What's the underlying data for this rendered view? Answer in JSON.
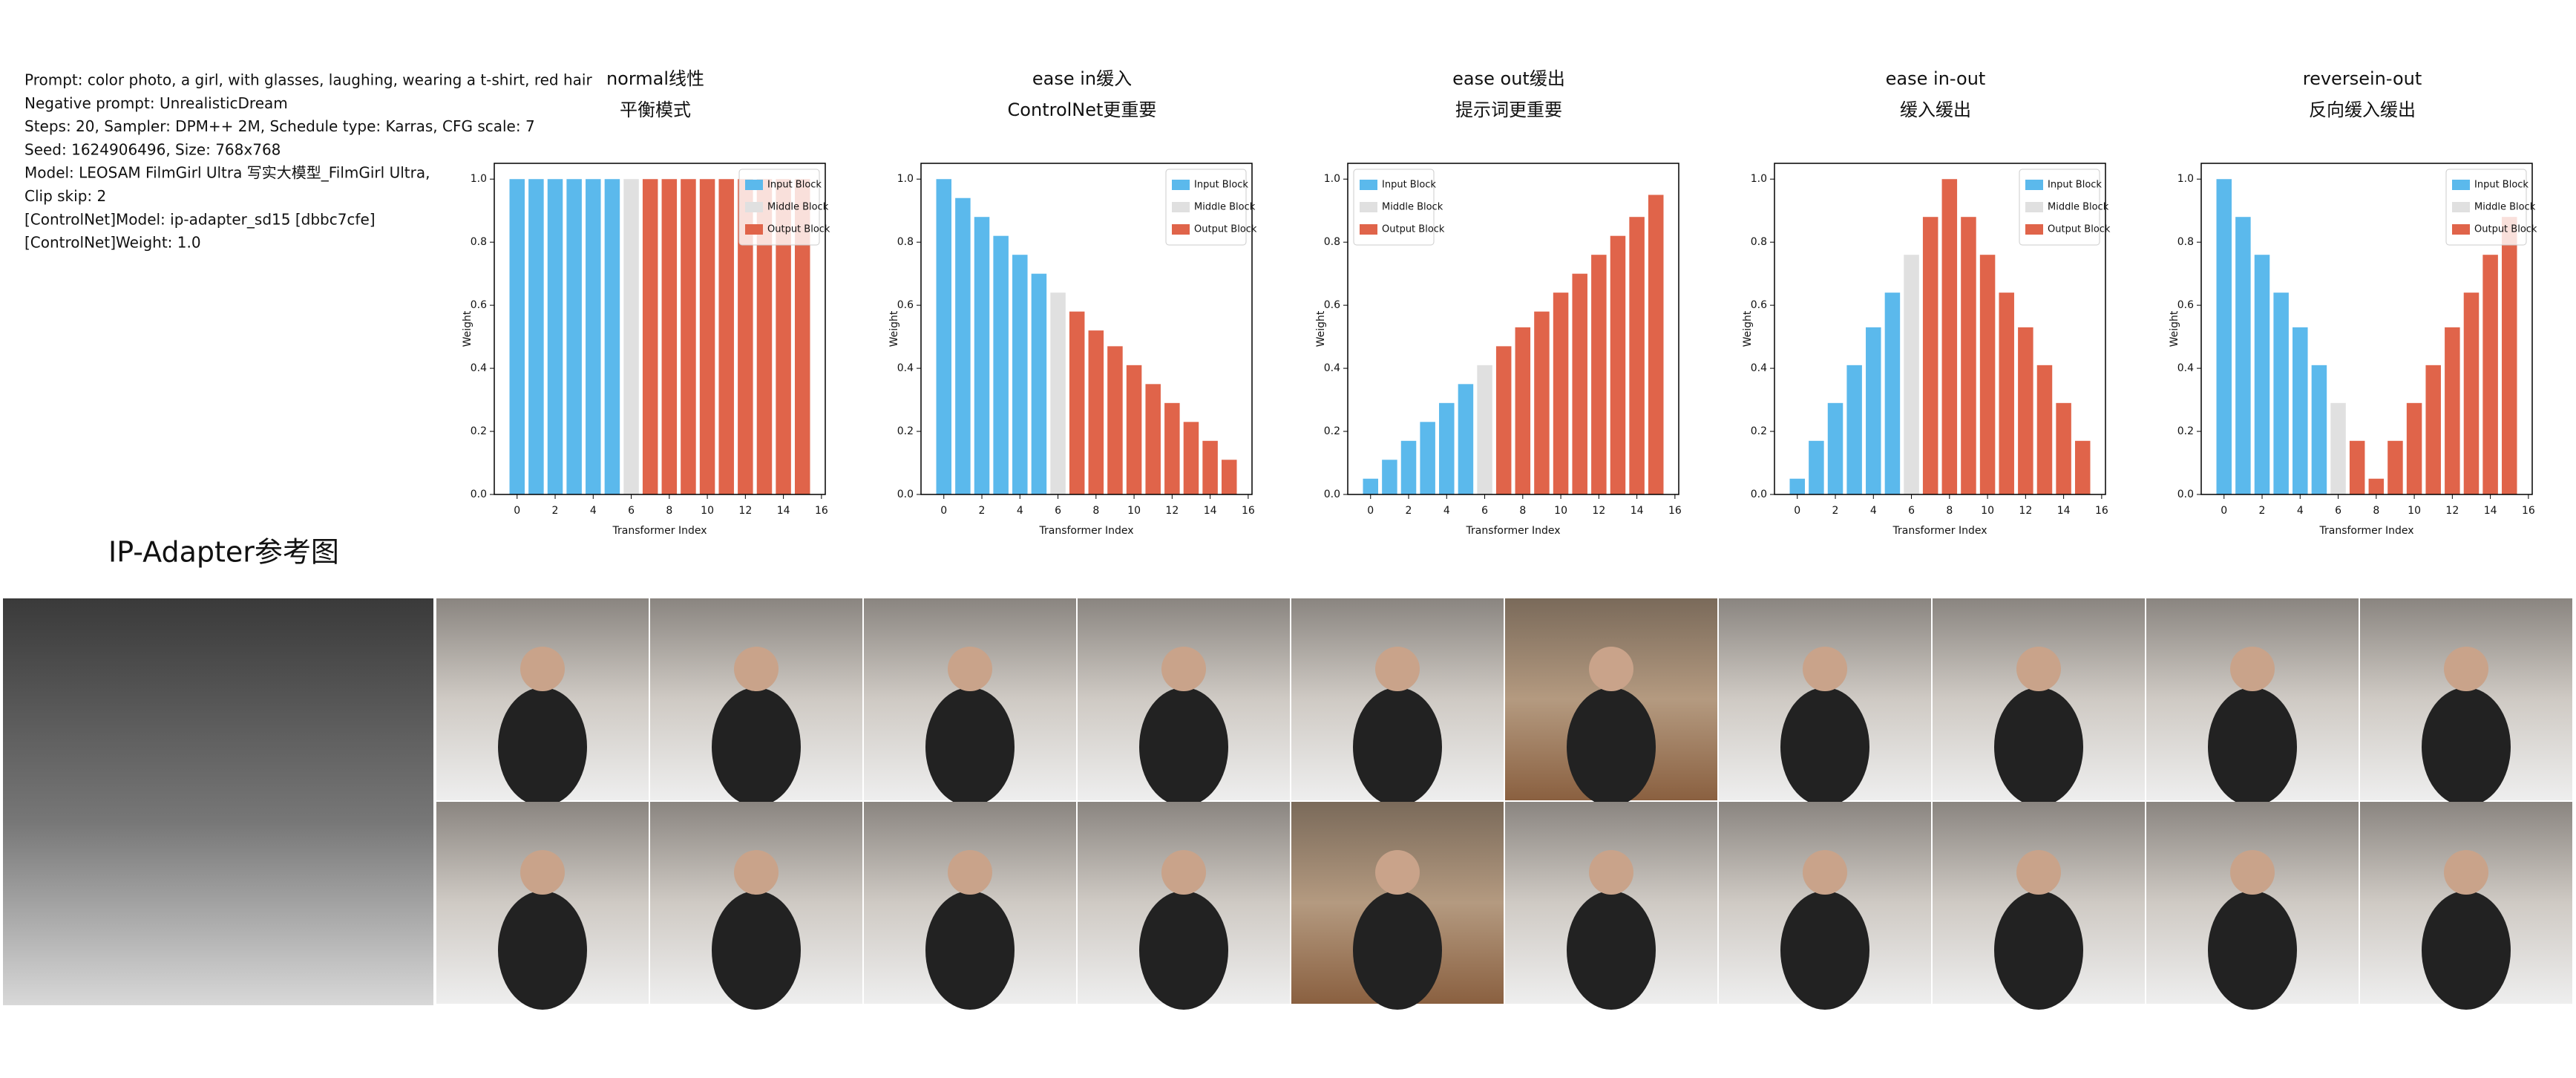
{
  "header": {
    "lines": [
      "Prompt: color photo, a girl, with glasses, laughing, wearing a t-shirt, red hair",
      "Negative prompt: UnrealisticDream",
      "Steps: 20, Sampler: DPM++ 2M, Schedule type: Karras, CFG scale: 7",
      "Seed: 1624906496, Size: 768x768",
      "Model: LEOSAM FilmGirl Ultra 写实大模型_FilmGirl Ultra,",
      "Clip skip: 2",
      "[ControlNet]Model: ip-adapter_sd15 [dbbc7cfe]",
      "[ControlNet]Weight: 1.0"
    ],
    "reference_label": "IP-Adapter参考图"
  },
  "chart_data": [
    {
      "type": "bar",
      "title": "normal线性",
      "subtitle": "平衡模式",
      "xlabel": "Transformer Index",
      "ylabel": "Weight",
      "x": [
        0,
        1,
        2,
        3,
        4,
        5,
        6,
        7,
        8,
        9,
        10,
        11,
        12,
        13,
        14,
        15
      ],
      "xlim": [
        -1.2,
        16.2
      ],
      "xticks": [
        0,
        2,
        4,
        6,
        8,
        10,
        12,
        14,
        16
      ],
      "ylim": [
        0,
        1.05
      ],
      "yticks": [
        {
          "value": 0,
          "label": "0.0"
        },
        0.2,
        0.4,
        0.6,
        0.8,
        {
          "value": 1,
          "label": "1.0"
        }
      ],
      "legend": "upper right",
      "series": [
        {
          "name": "Input Block",
          "color": "#5bb9ec",
          "values": [
            1,
            1,
            1,
            1,
            1,
            1,
            null,
            null,
            null,
            null,
            null,
            null,
            null,
            null,
            null,
            null
          ]
        },
        {
          "name": "Middle Block",
          "color": "#e0e0e0",
          "values": [
            null,
            null,
            null,
            null,
            null,
            null,
            1,
            null,
            null,
            null,
            null,
            null,
            null,
            null,
            null,
            null
          ]
        },
        {
          "name": "Output Block",
          "color": "#e0644a",
          "values": [
            null,
            null,
            null,
            null,
            null,
            null,
            null,
            1,
            1,
            1,
            1,
            1,
            1,
            1,
            1,
            1
          ]
        }
      ]
    },
    {
      "type": "bar",
      "title": "ease in缓入",
      "subtitle": "ControlNet更重要",
      "xlabel": "Transformer Index",
      "ylabel": "Weight",
      "x": [
        0,
        1,
        2,
        3,
        4,
        5,
        6,
        7,
        8,
        9,
        10,
        11,
        12,
        13,
        14,
        15
      ],
      "xlim": [
        -1.2,
        16.2
      ],
      "xticks": [
        0,
        2,
        4,
        6,
        8,
        10,
        12,
        14,
        16
      ],
      "ylim": [
        0,
        1.05
      ],
      "yticks": [
        {
          "value": 0,
          "label": "0.0"
        },
        0.2,
        0.4,
        0.6,
        0.8,
        {
          "value": 1,
          "label": "1.0"
        }
      ],
      "legend": "upper right",
      "series": [
        {
          "name": "Input Block",
          "color": "#5bb9ec",
          "values": [
            1,
            0.94,
            0.88,
            0.82,
            0.76,
            0.7,
            null,
            null,
            null,
            null,
            null,
            null,
            null,
            null,
            null,
            null
          ]
        },
        {
          "name": "Middle Block",
          "color": "#e0e0e0",
          "values": [
            null,
            null,
            null,
            null,
            null,
            null,
            0.64,
            null,
            null,
            null,
            null,
            null,
            null,
            null,
            null,
            null
          ]
        },
        {
          "name": "Output Block",
          "color": "#e0644a",
          "values": [
            null,
            null,
            null,
            null,
            null,
            null,
            null,
            0.58,
            0.52,
            0.47,
            0.41,
            0.35,
            0.29,
            0.23,
            0.17,
            0.11
          ]
        }
      ]
    },
    {
      "type": "bar",
      "title": "ease out缓出",
      "subtitle": "提示词更重要",
      "xlabel": "Transformer Index",
      "ylabel": "Weight",
      "x": [
        0,
        1,
        2,
        3,
        4,
        5,
        6,
        7,
        8,
        9,
        10,
        11,
        12,
        13,
        14,
        15
      ],
      "xlim": [
        -1.2,
        16.2
      ],
      "xticks": [
        0,
        2,
        4,
        6,
        8,
        10,
        12,
        14,
        16
      ],
      "ylim": [
        0,
        1.05
      ],
      "yticks": [
        {
          "value": 0,
          "label": "0.0"
        },
        0.2,
        0.4,
        0.6,
        0.8,
        {
          "value": 1,
          "label": "1.0"
        }
      ],
      "legend": "upper left",
      "series": [
        {
          "name": "Input Block",
          "color": "#5bb9ec",
          "values": [
            0.05,
            0.11,
            0.17,
            0.23,
            0.29,
            0.35,
            null,
            null,
            null,
            null,
            null,
            null,
            null,
            null,
            null,
            null
          ]
        },
        {
          "name": "Middle Block",
          "color": "#e0e0e0",
          "values": [
            null,
            null,
            null,
            null,
            null,
            null,
            0.41,
            null,
            null,
            null,
            null,
            null,
            null,
            null,
            null,
            null
          ]
        },
        {
          "name": "Output Block",
          "color": "#e0644a",
          "values": [
            null,
            null,
            null,
            null,
            null,
            null,
            null,
            0.47,
            0.53,
            0.58,
            0.64,
            0.7,
            0.76,
            0.82,
            0.88,
            0.95
          ]
        }
      ]
    },
    {
      "type": "bar",
      "title": "ease in-out",
      "subtitle": "缓入缓出",
      "xlabel": "Transformer Index",
      "ylabel": "Weight",
      "x": [
        0,
        1,
        2,
        3,
        4,
        5,
        6,
        7,
        8,
        9,
        10,
        11,
        12,
        13,
        14,
        15
      ],
      "xlim": [
        -1.2,
        16.2
      ],
      "xticks": [
        0,
        2,
        4,
        6,
        8,
        10,
        12,
        14,
        16
      ],
      "ylim": [
        0,
        1.05
      ],
      "yticks": [
        {
          "value": 0,
          "label": "0.0"
        },
        0.2,
        0.4,
        0.6,
        0.8,
        {
          "value": 1,
          "label": "1.0"
        }
      ],
      "legend": "upper right",
      "series": [
        {
          "name": "Input Block",
          "color": "#5bb9ec",
          "values": [
            0.05,
            0.17,
            0.29,
            0.41,
            0.53,
            0.64,
            null,
            null,
            null,
            null,
            null,
            null,
            null,
            null,
            null,
            null
          ]
        },
        {
          "name": "Middle Block",
          "color": "#e0e0e0",
          "values": [
            null,
            null,
            null,
            null,
            null,
            null,
            0.76,
            null,
            null,
            null,
            null,
            null,
            null,
            null,
            null,
            null
          ]
        },
        {
          "name": "Output Block",
          "color": "#e0644a",
          "values": [
            null,
            null,
            null,
            null,
            null,
            null,
            null,
            0.88,
            1,
            0.88,
            0.76,
            0.64,
            0.53,
            0.41,
            0.29,
            0.17
          ]
        }
      ]
    },
    {
      "type": "bar",
      "title": "reversein-out",
      "subtitle": "反向缓入缓出",
      "xlabel": "Transformer Index",
      "ylabel": "Weight",
      "x": [
        0,
        1,
        2,
        3,
        4,
        5,
        6,
        7,
        8,
        9,
        10,
        11,
        12,
        13,
        14,
        15
      ],
      "xlim": [
        -1.2,
        16.2
      ],
      "xticks": [
        0,
        2,
        4,
        6,
        8,
        10,
        12,
        14,
        16
      ],
      "ylim": [
        0,
        1.05
      ],
      "yticks": [
        {
          "value": 0,
          "label": "0.0"
        },
        0.2,
        0.4,
        0.6,
        0.8,
        {
          "value": 1,
          "label": "1.0"
        }
      ],
      "legend": "upper right",
      "series": [
        {
          "name": "Input Block",
          "color": "#5bb9ec",
          "values": [
            1,
            0.88,
            0.76,
            0.64,
            0.53,
            0.41,
            null,
            null,
            null,
            null,
            null,
            null,
            null,
            null,
            null,
            null
          ]
        },
        {
          "name": "Middle Block",
          "color": "#e0e0e0",
          "values": [
            null,
            null,
            null,
            null,
            null,
            null,
            0.29,
            null,
            null,
            null,
            null,
            null,
            null,
            null,
            null,
            null
          ]
        },
        {
          "name": "Output Block",
          "color": "#e0644a",
          "values": [
            null,
            null,
            null,
            null,
            null,
            null,
            null,
            0.17,
            0.05,
            0.17,
            0.29,
            0.41,
            0.53,
            0.64,
            0.76,
            0.88
          ]
        }
      ]
    }
  ]
}
